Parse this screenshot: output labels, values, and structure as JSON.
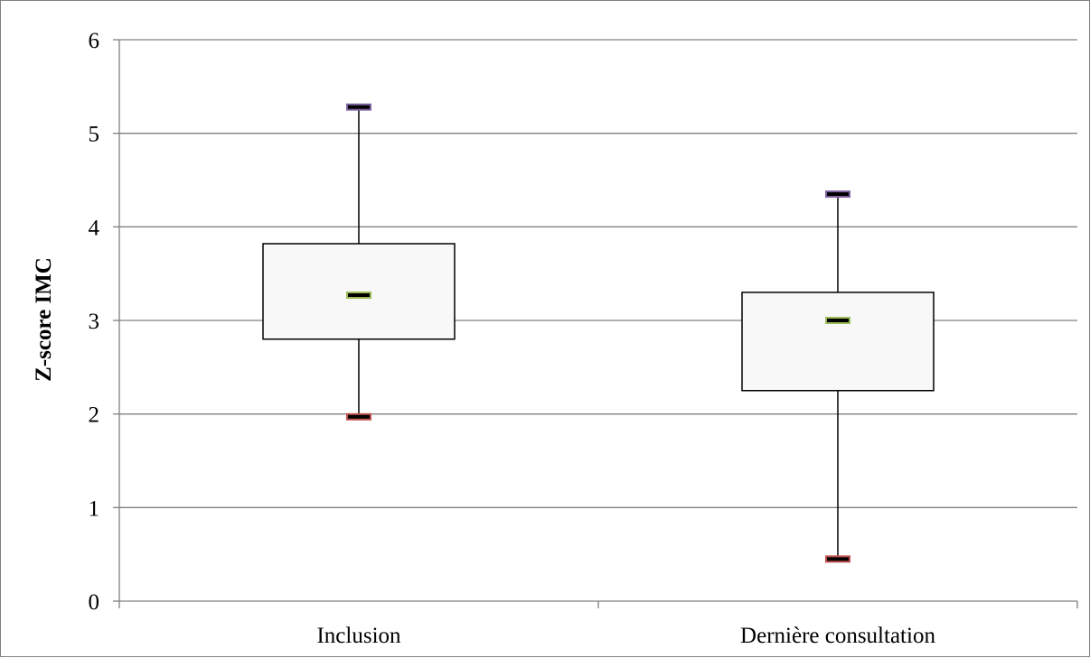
{
  "chart_data": {
    "type": "boxplot",
    "ylabel": "Z-score IMC",
    "xlabel": "",
    "ylim": [
      0,
      6
    ],
    "yticks": [
      "0",
      "1",
      "2",
      "3",
      "4",
      "5",
      "6"
    ],
    "grid": true,
    "categories": [
      "Inclusion",
      "Dernière consultation"
    ],
    "boxes": [
      {
        "category": "Inclusion",
        "min": 1.97,
        "q1": 2.8,
        "median": 3.27,
        "q3": 3.82,
        "max": 5.28
      },
      {
        "category": "Dernière consultation",
        "min": 0.45,
        "q1": 2.25,
        "median": 3.0,
        "q3": 3.3,
        "max": 4.35
      }
    ],
    "colors": {
      "box_fill": "#f8f8f8",
      "box_stroke": "#000000",
      "grid": "#808080",
      "median_marker_edge": "#9bbb59",
      "max_marker_edge": "#8064a2",
      "min_marker_edge": "#c0504d"
    }
  }
}
